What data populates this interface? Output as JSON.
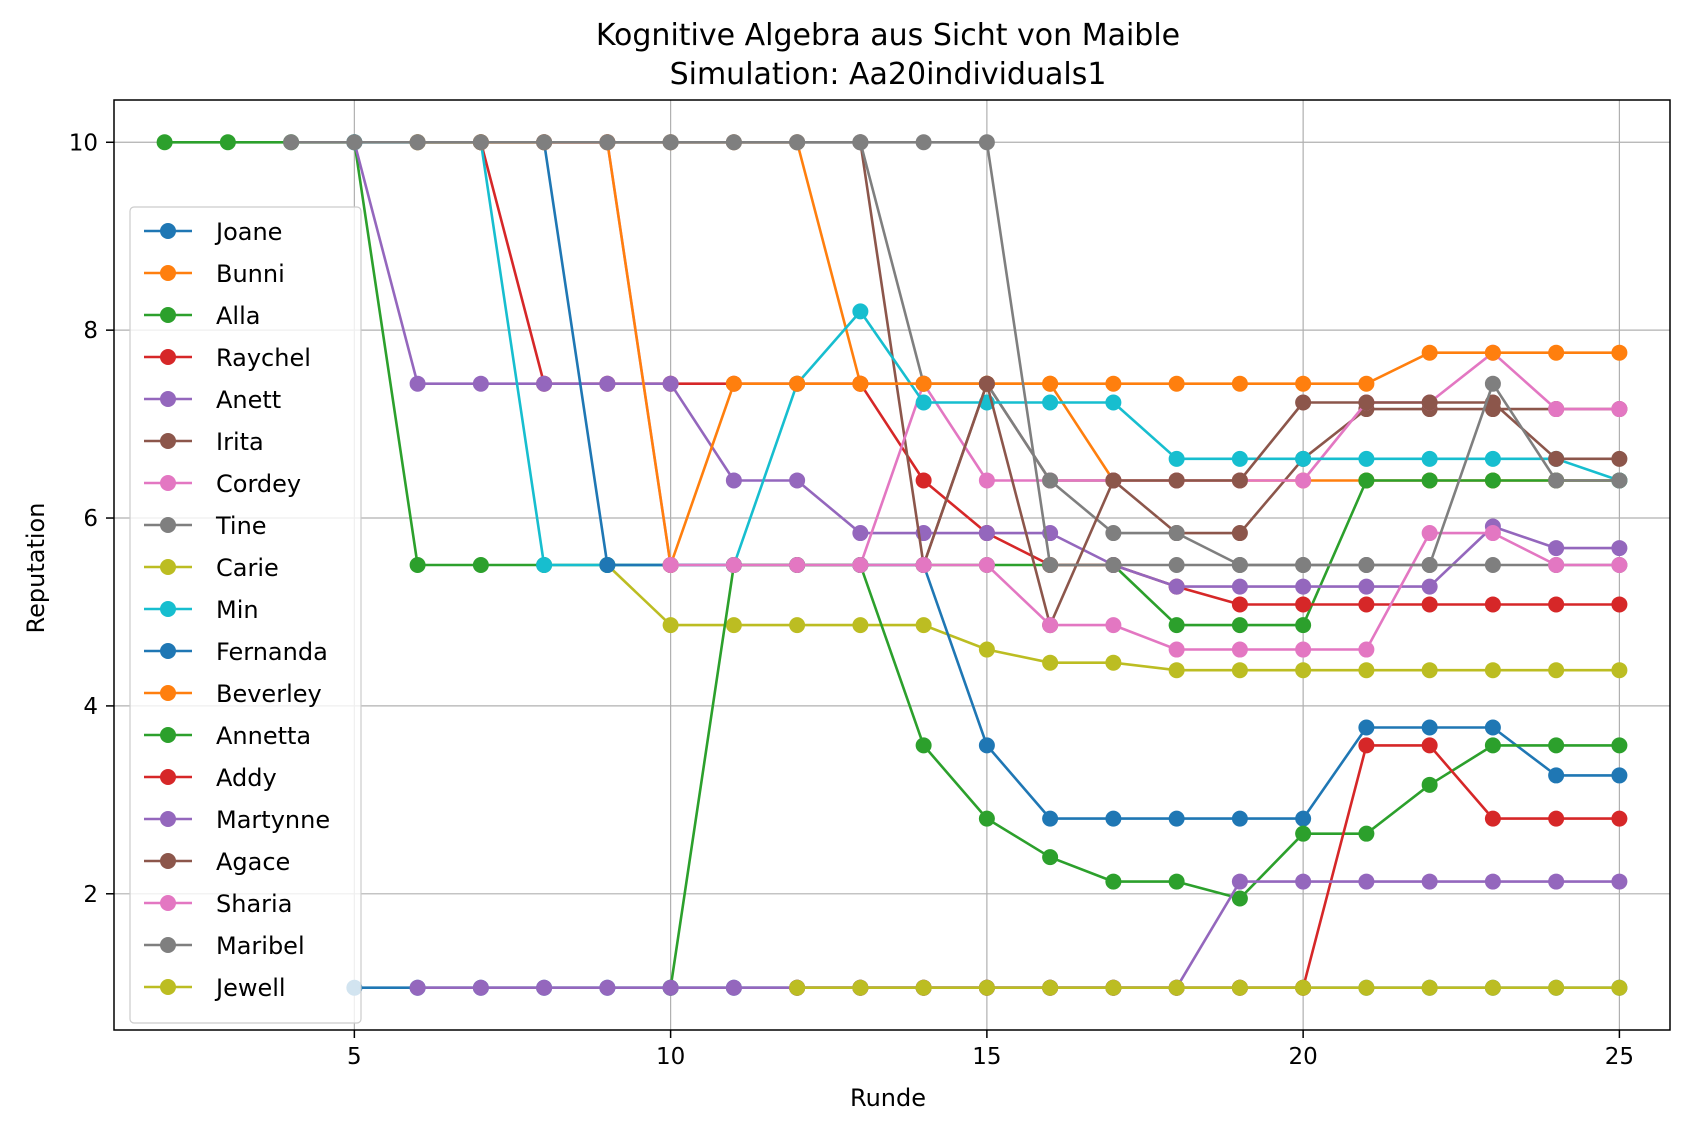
{
  "chart_data": {
    "type": "line",
    "title": "Kognitive Algebra aus Sicht von Maible",
    "subtitle": "Simulation: Aa20individuals1",
    "xlabel": "Runde",
    "ylabel": "Reputation",
    "xlim": [
      1.2,
      25.8
    ],
    "ylim": [
      0.55,
      10.45
    ],
    "xticks": [
      5,
      10,
      15,
      20,
      25
    ],
    "yticks": [
      2,
      4,
      6,
      8,
      10
    ],
    "grid": true,
    "legend_position": "center-left",
    "series": [
      {
        "name": "Joane",
        "color": "#1f77b4",
        "x": [
          5,
          6,
          7,
          8,
          9,
          10,
          11,
          12,
          13,
          14,
          15,
          16,
          17,
          18,
          19,
          20,
          21,
          22,
          23,
          24,
          25
        ],
        "y": [
          1,
          1,
          1,
          1,
          1,
          1,
          1,
          1,
          1,
          1,
          1,
          1,
          1,
          1,
          1,
          1,
          1,
          1,
          1,
          1,
          1
        ]
      },
      {
        "name": "Bunni",
        "color": "#ff7f0e",
        "x": [
          6,
          7,
          8,
          9,
          10,
          11,
          12,
          13,
          14,
          15,
          16,
          17,
          18,
          19,
          20,
          21,
          22,
          23,
          24,
          25
        ],
        "y": [
          10,
          10,
          10,
          10,
          10,
          10,
          10,
          7.43,
          7.43,
          7.43,
          7.43,
          6.4,
          6.4,
          6.4,
          6.4,
          6.4,
          6.4,
          6.4,
          6.4,
          6.4
        ]
      },
      {
        "name": "Alla",
        "color": "#2ca02c",
        "x": [
          2,
          3,
          4,
          5,
          6,
          7,
          8,
          9,
          10,
          11,
          12,
          13,
          14,
          15,
          16,
          17,
          18,
          19,
          20,
          21,
          22,
          23,
          24,
          25
        ],
        "y": [
          10,
          10,
          10,
          10,
          5.5,
          5.5,
          5.5,
          5.5,
          5.5,
          5.5,
          5.5,
          5.5,
          5.5,
          5.5,
          5.5,
          5.5,
          4.86,
          4.86,
          4.86,
          6.4,
          6.4,
          6.4,
          6.4,
          6.4
        ]
      },
      {
        "name": "Raychel",
        "color": "#d62728",
        "x": [
          7,
          8,
          9,
          10,
          11,
          12,
          13,
          14,
          15,
          16,
          17,
          18,
          19,
          20,
          21,
          22,
          23,
          24,
          25
        ],
        "y": [
          10,
          7.43,
          7.43,
          7.43,
          7.43,
          7.43,
          7.43,
          6.4,
          5.84,
          5.5,
          5.5,
          5.27,
          5.08,
          5.08,
          5.08,
          5.08,
          5.08,
          5.08,
          5.08
        ]
      },
      {
        "name": "Anett",
        "color": "#9467bd",
        "x": [
          5,
          6,
          7,
          8,
          9,
          10,
          11,
          12,
          13,
          14,
          15,
          16,
          17,
          18,
          19,
          20,
          21,
          22,
          23,
          24,
          25
        ],
        "y": [
          10,
          7.43,
          7.43,
          7.43,
          7.43,
          7.43,
          6.4,
          6.4,
          5.84,
          5.84,
          5.84,
          5.84,
          5.5,
          5.27,
          5.27,
          5.27,
          5.27,
          5.27,
          5.91,
          5.68,
          5.68
        ]
      },
      {
        "name": "Irita",
        "color": "#8c564b",
        "x": [
          13,
          14,
          15,
          16,
          17,
          18,
          19,
          20,
          21,
          22,
          23,
          24,
          25
        ],
        "y": [
          10,
          5.5,
          7.43,
          6.4,
          6.4,
          5.84,
          5.84,
          6.63,
          7.16,
          7.16,
          7.16,
          7.16,
          7.16
        ]
      },
      {
        "name": "Cordey",
        "color": "#e377c2",
        "x": [
          8,
          9,
          10,
          11,
          12,
          13,
          14,
          15,
          16,
          17,
          18,
          19,
          20,
          21,
          22,
          23,
          24,
          25
        ],
        "y": [
          10,
          10,
          5.5,
          5.5,
          5.5,
          5.5,
          7.43,
          6.4,
          6.4,
          6.4,
          6.4,
          6.4,
          6.4,
          7.23,
          7.23,
          7.76,
          7.16,
          7.16
        ]
      },
      {
        "name": "Tine",
        "color": "#7f7f7f",
        "x": [
          9,
          10,
          11,
          12,
          13,
          14,
          15,
          16,
          17,
          18,
          19,
          20,
          21,
          22,
          23,
          24,
          25
        ],
        "y": [
          10,
          10,
          10,
          10,
          10,
          7.43,
          7.43,
          6.4,
          5.84,
          5.84,
          5.5,
          5.5,
          5.5,
          5.5,
          5.5,
          5.5,
          5.5
        ]
      },
      {
        "name": "Carie",
        "color": "#bcbd22",
        "x": [
          9,
          10,
          11,
          12,
          13,
          14,
          15,
          16,
          17,
          18,
          19,
          20,
          21,
          22,
          23,
          24,
          25
        ],
        "y": [
          5.5,
          4.86,
          4.86,
          4.86,
          4.86,
          4.86,
          4.6,
          4.46,
          4.46,
          4.38,
          4.38,
          4.38,
          4.38,
          4.38,
          4.38,
          4.38,
          4.38
        ]
      },
      {
        "name": "Min",
        "color": "#17becf",
        "x": [
          5,
          6,
          7,
          8,
          9,
          10,
          11,
          12,
          13,
          14,
          15,
          16,
          17,
          18,
          19,
          20,
          21,
          22,
          23,
          24,
          25
        ],
        "y": [
          10,
          10,
          10,
          5.5,
          5.5,
          5.5,
          5.5,
          7.43,
          8.2,
          7.23,
          7.23,
          7.23,
          7.23,
          6.63,
          6.63,
          6.63,
          6.63,
          6.63,
          6.63,
          6.63,
          6.4
        ]
      },
      {
        "name": "Fernanda",
        "color": "#1f77b4",
        "x": [
          8,
          9,
          10,
          11,
          12,
          13,
          14,
          15,
          16,
          17,
          18,
          19,
          20,
          21,
          22,
          23,
          24,
          25
        ],
        "y": [
          10,
          5.5,
          5.5,
          5.5,
          5.5,
          5.5,
          5.5,
          3.58,
          2.8,
          2.8,
          2.8,
          2.8,
          2.8,
          3.77,
          3.77,
          3.77,
          3.26,
          3.26
        ]
      },
      {
        "name": "Beverley",
        "color": "#ff7f0e",
        "x": [
          6,
          7,
          8,
          9,
          10,
          11,
          12,
          13,
          14,
          15,
          16,
          17,
          18,
          19,
          20,
          21,
          22,
          23,
          24,
          25
        ],
        "y": [
          10,
          10,
          10,
          10,
          5.5,
          7.43,
          7.43,
          7.43,
          7.43,
          7.43,
          7.43,
          7.43,
          7.43,
          7.43,
          7.43,
          7.43,
          7.76,
          7.76,
          7.76,
          7.76
        ]
      },
      {
        "name": "Annetta",
        "color": "#2ca02c",
        "x": [
          10,
          11,
          12,
          13,
          14,
          15,
          16,
          17,
          18,
          19,
          20,
          21,
          22,
          23,
          24,
          25
        ],
        "y": [
          1,
          5.5,
          5.5,
          5.5,
          3.58,
          2.8,
          2.39,
          2.13,
          2.13,
          1.95,
          2.64,
          2.64,
          3.16,
          3.58,
          3.58,
          3.58
        ]
      },
      {
        "name": "Addy",
        "color": "#d62728",
        "x": [
          12,
          13,
          14,
          15,
          16,
          17,
          18,
          19,
          20,
          21,
          22,
          23,
          24,
          25
        ],
        "y": [
          1,
          1,
          1,
          1,
          1,
          1,
          1,
          1,
          1,
          3.58,
          3.58,
          2.8,
          2.8,
          2.8
        ]
      },
      {
        "name": "Martynne",
        "color": "#9467bd",
        "x": [
          6,
          7,
          8,
          9,
          10,
          11,
          12,
          13,
          14,
          15,
          16,
          17,
          18,
          19,
          20,
          21,
          22,
          23,
          24,
          25
        ],
        "y": [
          1,
          1,
          1,
          1,
          1,
          1,
          1,
          1,
          1,
          1,
          1,
          1,
          1,
          2.13,
          2.13,
          2.13,
          2.13,
          2.13,
          2.13,
          2.13
        ]
      },
      {
        "name": "Agace",
        "color": "#8c564b",
        "x": [
          14,
          15,
          16,
          17,
          18,
          19,
          20,
          21,
          22,
          23,
          24,
          25
        ],
        "y": [
          5.5,
          7.43,
          4.86,
          6.4,
          6.4,
          6.4,
          7.23,
          7.23,
          7.23,
          7.23,
          6.63,
          6.63
        ]
      },
      {
        "name": "Sharia",
        "color": "#e377c2",
        "x": [
          10,
          11,
          12,
          13,
          14,
          15,
          16,
          17,
          18,
          19,
          20,
          21,
          22,
          23,
          24,
          25
        ],
        "y": [
          5.5,
          5.5,
          5.5,
          5.5,
          5.5,
          5.5,
          4.86,
          4.86,
          4.6,
          4.6,
          4.6,
          4.6,
          5.84,
          5.84,
          5.5,
          5.5
        ]
      },
      {
        "name": "Maribel",
        "color": "#7f7f7f",
        "x": [
          4,
          5,
          6,
          7,
          8,
          9,
          10,
          11,
          12,
          13,
          14,
          15,
          16,
          17,
          18,
          19,
          20,
          21,
          22,
          23,
          24,
          25
        ],
        "y": [
          10,
          10,
          10,
          10,
          10,
          10,
          10,
          10,
          10,
          10,
          10,
          10,
          5.5,
          5.5,
          5.5,
          5.5,
          5.5,
          5.5,
          5.5,
          7.43,
          6.4,
          6.4
        ]
      },
      {
        "name": "Jewell",
        "color": "#bcbd22",
        "x": [
          12,
          13,
          14,
          15,
          16,
          17,
          18,
          19,
          20,
          21,
          22,
          23,
          24,
          25
        ],
        "y": [
          1,
          1,
          1,
          1,
          1,
          1,
          1,
          1,
          1,
          1,
          1,
          1,
          1,
          1
        ]
      }
    ]
  }
}
